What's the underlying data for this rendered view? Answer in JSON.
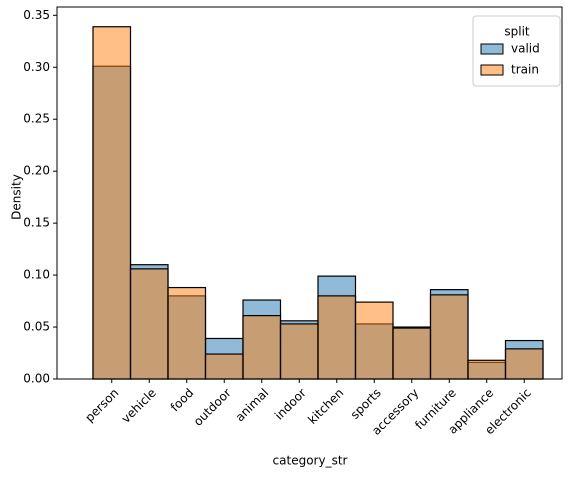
{
  "chart_data": {
    "type": "bar",
    "x_label": "category_str",
    "y_label": "Density",
    "categories": [
      "person",
      "vehicle",
      "food",
      "outdoor",
      "animal",
      "indoor",
      "kitchen",
      "sports",
      "accessory",
      "furniture",
      "appliance",
      "electronic"
    ],
    "series": [
      {
        "name": "valid",
        "color": "#1f77b4",
        "values": [
          0.301,
          0.11,
          0.08,
          0.039,
          0.076,
          0.056,
          0.099,
          0.053,
          0.05,
          0.086,
          0.016,
          0.037
        ]
      },
      {
        "name": "train",
        "color": "#ff7f0e",
        "values": [
          0.339,
          0.106,
          0.088,
          0.024,
          0.061,
          0.053,
          0.08,
          0.074,
          0.049,
          0.081,
          0.018,
          0.029
        ]
      }
    ],
    "legend_title": "split",
    "legend": "upper right",
    "ylim": [
      0,
      0.358
    ],
    "yticks": [
      {
        "value": 0,
        "label": "0.00"
      },
      {
        "value": 0.05,
        "label": "0.05"
      },
      {
        "value": 0.1,
        "label": "0.10"
      },
      {
        "value": 0.15,
        "label": "0.15"
      },
      {
        "value": 0.2,
        "label": "0.20"
      },
      {
        "value": 0.25,
        "label": "0.25"
      },
      {
        "value": 0.3,
        "label": "0.30"
      },
      {
        "value": 0.35,
        "label": "0.35"
      }
    ],
    "grid": false
  }
}
